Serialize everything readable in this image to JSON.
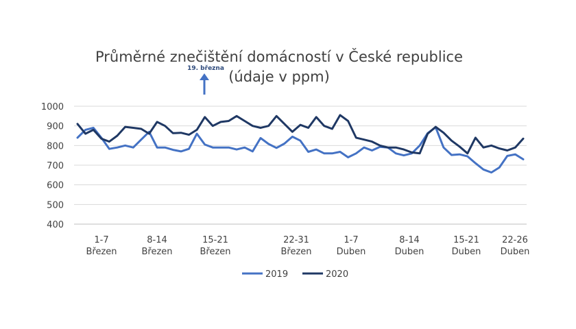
{
  "chart_data": {
    "type": "line",
    "title_line1": "Průměrné znečištění domácností v České republice",
    "title_line2": "(údaje v ppm)",
    "xlabel": "",
    "ylabel": "",
    "ylim": [
      400,
      1000
    ],
    "yticks": [
      "400",
      "500",
      "600",
      "700",
      "800",
      "900",
      "1000"
    ],
    "grid": true,
    "legend_position": "bottom",
    "x_tick_labels": [
      {
        "range": "1-7",
        "month": "Březen"
      },
      {
        "range": "8-14",
        "month": "Březen"
      },
      {
        "range": "15-21",
        "month": "Březen"
      },
      {
        "range": "22-31",
        "month": "Březen"
      },
      {
        "range": "1-7",
        "month": "Duben"
      },
      {
        "range": "8-14",
        "month": "Duben"
      },
      {
        "range": "15-21",
        "month": "Duben"
      },
      {
        "range": "22-26",
        "month": "Duben"
      }
    ],
    "annotation": {
      "text": "19. března",
      "type": "arrow"
    },
    "series": [
      {
        "name": "2019",
        "color": "#4472c4",
        "values": [
          840,
          880,
          890,
          840,
          783,
          790,
          800,
          790,
          830,
          870,
          790,
          790,
          778,
          770,
          783,
          860,
          805,
          790,
          790,
          790,
          780,
          790,
          770,
          838,
          808,
          788,
          810,
          845,
          825,
          768,
          780,
          760,
          760,
          768,
          740,
          760,
          790,
          775,
          793,
          790,
          760,
          750,
          760,
          800,
          863,
          893,
          790,
          752,
          755,
          745,
          710,
          678,
          663,
          688,
          747,
          755,
          730
        ]
      },
      {
        "name": "2020",
        "color": "#1f3864",
        "values": [
          910,
          860,
          880,
          835,
          820,
          850,
          895,
          890,
          885,
          860,
          920,
          900,
          863,
          865,
          855,
          880,
          945,
          900,
          920,
          925,
          950,
          925,
          900,
          890,
          900,
          950,
          910,
          870,
          905,
          890,
          945,
          900,
          885,
          955,
          925,
          840,
          830,
          820,
          800,
          790,
          790,
          780,
          765,
          760,
          860,
          895,
          865,
          825,
          795,
          760,
          840,
          790,
          800,
          785,
          775,
          790,
          835
        ]
      }
    ]
  }
}
